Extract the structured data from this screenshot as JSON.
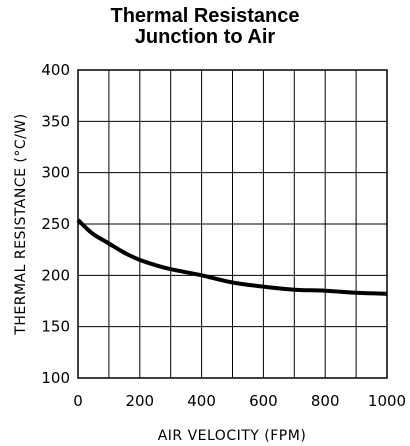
{
  "chart_data": {
    "type": "line",
    "title_line1": "Thermal Resistance",
    "title_line2": "Junction to Air",
    "xlabel": "AIR VELOCITY (FPM)",
    "ylabel": "THERMAL RESISTANCE (°C/W)",
    "xlim": [
      0,
      1000
    ],
    "ylim": [
      100,
      400
    ],
    "x_ticks": [
      0,
      200,
      400,
      600,
      800,
      1000
    ],
    "y_ticks": [
      100,
      150,
      200,
      250,
      300,
      350,
      400
    ],
    "x_tick_labels": [
      "0",
      "200",
      "400",
      "600",
      "800",
      "1000"
    ],
    "y_tick_labels": [
      "100",
      "150",
      "200",
      "250",
      "300",
      "350",
      "400"
    ],
    "grid": true,
    "grid_x_step": 100,
    "grid_y_step": 50,
    "line_color": "#000000",
    "series": [
      {
        "x": [
          0,
          20,
          50,
          100,
          150,
          200,
          250,
          300,
          400,
          500,
          600,
          700,
          800,
          900,
          1000
        ],
        "values": [
          254,
          248,
          240,
          231,
          222,
          215,
          210,
          206,
          200,
          193,
          189,
          186,
          185,
          183,
          182
        ]
      }
    ]
  }
}
